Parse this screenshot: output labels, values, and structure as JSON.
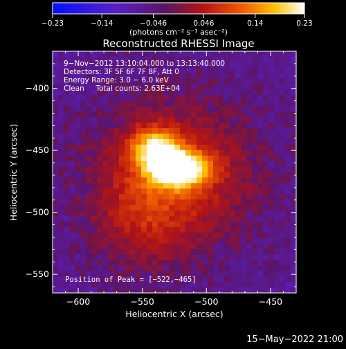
{
  "colorbar": {
    "ticks": [
      "-0.23",
      "-0.14",
      "-0.046",
      "0.046",
      "0.14",
      "0.23"
    ],
    "unit_label": "(photons cm⁻² s⁻¹ asec⁻²)",
    "range": [
      -0.23,
      0.23
    ],
    "colormap": "heat (blue-purple-red-yellow-white)"
  },
  "chart_data": {
    "type": "heatmap",
    "title": "Reconstructed RHESSI Image",
    "xlabel": "Heliocentric X (arcsec)",
    "ylabel": "Heliocentric Y (arcsec)",
    "xlim": [
      -620,
      -430
    ],
    "ylim": [
      -565,
      -370
    ],
    "x_ticks": [
      -600,
      -550,
      -500,
      -450
    ],
    "y_ticks": [
      -400,
      -450,
      -500,
      -550
    ],
    "x_tick_labels": [
      "−600",
      "−550",
      "−500",
      "−450"
    ],
    "y_tick_labels": [
      "−400",
      "−450",
      "−500",
      "−550"
    ],
    "peak": [
      -522,
      -465
    ],
    "annotations": [
      "9−Nov−2012 13:10:04.000 to 13:13:40.000",
      "Detectors: 3F 5F 6F 7F 8F, Att 0",
      "Energy Range: 3.0 − 6.0 keV",
      "Clean     Total counts: 2.63E+04"
    ],
    "peak_label": "Position of Peak = [−522,−465]"
  },
  "footer": {
    "timestamp": "15−May−2022 21:00"
  }
}
